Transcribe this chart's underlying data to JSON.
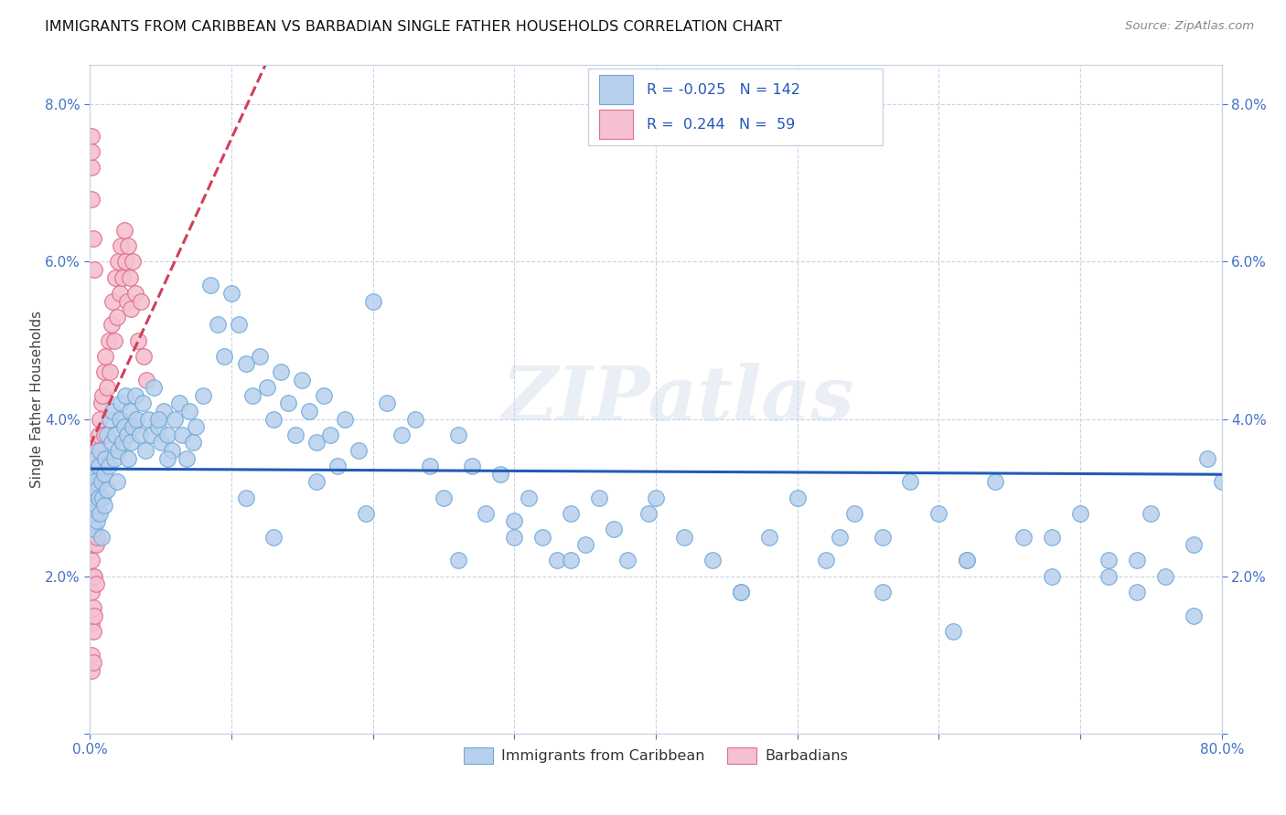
{
  "title": "IMMIGRANTS FROM CARIBBEAN VS BARBADIAN SINGLE FATHER HOUSEHOLDS CORRELATION CHART",
  "source": "Source: ZipAtlas.com",
  "ylabel": "Single Father Households",
  "xlim": [
    0.0,
    0.8
  ],
  "ylim": [
    0.0,
    0.085
  ],
  "xticks": [
    0.0,
    0.1,
    0.2,
    0.3,
    0.4,
    0.5,
    0.6,
    0.7,
    0.8
  ],
  "xticklabels": [
    "0.0%",
    "",
    "",
    "",
    "",
    "",
    "",
    "",
    "80.0%"
  ],
  "yticks": [
    0.0,
    0.02,
    0.04,
    0.06,
    0.08
  ],
  "yticklabels": [
    "",
    "2.0%",
    "4.0%",
    "6.0%",
    "8.0%"
  ],
  "blue_color": "#b8d0ed",
  "blue_edge": "#6fa8d6",
  "pink_color": "#f5c0cf",
  "pink_edge": "#e07090",
  "trend_blue_color": "#1f5cb5",
  "trend_pink_color": "#d0405a",
  "watermark": "ZIPatlas",
  "legend_r_blue": "-0.025",
  "legend_n_blue": "142",
  "legend_r_pink": "0.244",
  "legend_n_pink": "59",
  "blue_label": "Immigrants from Caribbean",
  "pink_label": "Barbadians",
  "blue_x": [
    0.001,
    0.002,
    0.002,
    0.003,
    0.003,
    0.004,
    0.004,
    0.005,
    0.005,
    0.006,
    0.006,
    0.007,
    0.007,
    0.008,
    0.008,
    0.009,
    0.01,
    0.01,
    0.011,
    0.012,
    0.012,
    0.013,
    0.014,
    0.015,
    0.016,
    0.017,
    0.018,
    0.019,
    0.02,
    0.021,
    0.022,
    0.023,
    0.024,
    0.025,
    0.026,
    0.027,
    0.028,
    0.029,
    0.03,
    0.032,
    0.033,
    0.035,
    0.037,
    0.039,
    0.041,
    0.043,
    0.045,
    0.048,
    0.05,
    0.052,
    0.055,
    0.058,
    0.06,
    0.063,
    0.065,
    0.068,
    0.07,
    0.073,
    0.075,
    0.08,
    0.085,
    0.09,
    0.095,
    0.1,
    0.105,
    0.11,
    0.115,
    0.12,
    0.125,
    0.13,
    0.135,
    0.14,
    0.145,
    0.15,
    0.155,
    0.16,
    0.165,
    0.17,
    0.175,
    0.18,
    0.19,
    0.2,
    0.21,
    0.22,
    0.23,
    0.24,
    0.25,
    0.26,
    0.27,
    0.28,
    0.29,
    0.3,
    0.31,
    0.32,
    0.33,
    0.34,
    0.35,
    0.36,
    0.37,
    0.38,
    0.4,
    0.42,
    0.44,
    0.46,
    0.48,
    0.5,
    0.52,
    0.54,
    0.56,
    0.58,
    0.6,
    0.62,
    0.64,
    0.66,
    0.68,
    0.7,
    0.72,
    0.74,
    0.76,
    0.78,
    0.048,
    0.055,
    0.11,
    0.13,
    0.16,
    0.195,
    0.26,
    0.3,
    0.34,
    0.395,
    0.46,
    0.53,
    0.61,
    0.72,
    0.74,
    0.78,
    0.79,
    0.8,
    0.75,
    0.68,
    0.62,
    0.56
  ],
  "blue_y": [
    0.03,
    0.028,
    0.033,
    0.026,
    0.032,
    0.029,
    0.035,
    0.031,
    0.027,
    0.034,
    0.03,
    0.028,
    0.036,
    0.032,
    0.025,
    0.03,
    0.033,
    0.029,
    0.035,
    0.031,
    0.038,
    0.034,
    0.04,
    0.037,
    0.041,
    0.035,
    0.038,
    0.032,
    0.036,
    0.04,
    0.042,
    0.037,
    0.039,
    0.043,
    0.038,
    0.035,
    0.041,
    0.037,
    0.039,
    0.043,
    0.04,
    0.038,
    0.042,
    0.036,
    0.04,
    0.038,
    0.044,
    0.039,
    0.037,
    0.041,
    0.038,
    0.036,
    0.04,
    0.042,
    0.038,
    0.035,
    0.041,
    0.037,
    0.039,
    0.043,
    0.057,
    0.052,
    0.048,
    0.056,
    0.052,
    0.047,
    0.043,
    0.048,
    0.044,
    0.04,
    0.046,
    0.042,
    0.038,
    0.045,
    0.041,
    0.037,
    0.043,
    0.038,
    0.034,
    0.04,
    0.036,
    0.055,
    0.042,
    0.038,
    0.04,
    0.034,
    0.03,
    0.038,
    0.034,
    0.028,
    0.033,
    0.027,
    0.03,
    0.025,
    0.022,
    0.028,
    0.024,
    0.03,
    0.026,
    0.022,
    0.03,
    0.025,
    0.022,
    0.018,
    0.025,
    0.03,
    0.022,
    0.028,
    0.025,
    0.032,
    0.028,
    0.022,
    0.032,
    0.025,
    0.02,
    0.028,
    0.022,
    0.018,
    0.02,
    0.024,
    0.04,
    0.035,
    0.03,
    0.025,
    0.032,
    0.028,
    0.022,
    0.025,
    0.022,
    0.028,
    0.018,
    0.025,
    0.013,
    0.02,
    0.022,
    0.015,
    0.035,
    0.032,
    0.028,
    0.025,
    0.022,
    0.018
  ],
  "pink_x": [
    0.001,
    0.001,
    0.001,
    0.001,
    0.001,
    0.001,
    0.001,
    0.002,
    0.002,
    0.002,
    0.002,
    0.002,
    0.002,
    0.003,
    0.003,
    0.003,
    0.003,
    0.003,
    0.004,
    0.004,
    0.004,
    0.004,
    0.005,
    0.005,
    0.005,
    0.006,
    0.006,
    0.007,
    0.007,
    0.008,
    0.008,
    0.009,
    0.01,
    0.01,
    0.011,
    0.012,
    0.013,
    0.014,
    0.015,
    0.016,
    0.017,
    0.018,
    0.019,
    0.02,
    0.021,
    0.022,
    0.023,
    0.024,
    0.025,
    0.026,
    0.027,
    0.028,
    0.029,
    0.03,
    0.032,
    0.034,
    0.036,
    0.038,
    0.04
  ],
  "pink_y": [
    0.03,
    0.025,
    0.022,
    0.018,
    0.014,
    0.01,
    0.008,
    0.028,
    0.024,
    0.02,
    0.016,
    0.013,
    0.009,
    0.032,
    0.028,
    0.024,
    0.02,
    0.015,
    0.033,
    0.028,
    0.024,
    0.019,
    0.036,
    0.03,
    0.025,
    0.038,
    0.032,
    0.04,
    0.033,
    0.042,
    0.035,
    0.043,
    0.046,
    0.038,
    0.048,
    0.044,
    0.05,
    0.046,
    0.052,
    0.055,
    0.05,
    0.058,
    0.053,
    0.06,
    0.056,
    0.062,
    0.058,
    0.064,
    0.06,
    0.055,
    0.062,
    0.058,
    0.054,
    0.06,
    0.056,
    0.05,
    0.055,
    0.048,
    0.045
  ],
  "pink_extra_x": [
    0.001,
    0.001,
    0.001,
    0.001,
    0.002,
    0.003
  ],
  "pink_extra_y": [
    0.072,
    0.068,
    0.076,
    0.074,
    0.063,
    0.059
  ]
}
